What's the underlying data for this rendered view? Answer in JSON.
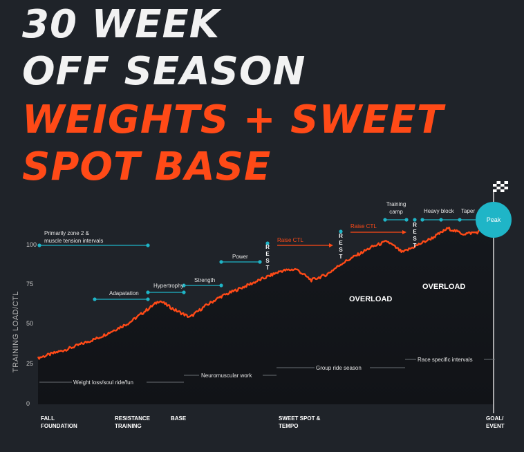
{
  "title": {
    "line1": "30 WEEK",
    "line2": "OFF SEASON",
    "line3": "WEIGHTS  + SWEET",
    "line4": "SPOT BASE"
  },
  "colors": {
    "background": "#1f2329",
    "accent": "#ff4a17",
    "teal": "#1fb5c7",
    "grey_line": "#6b6f75"
  },
  "chart_data": {
    "type": "area",
    "ylabel": "TRAINING LOAD/CTL",
    "yticks": [
      0,
      25,
      50,
      75,
      100
    ],
    "ylim": [
      0,
      100
    ],
    "x_range": [
      0,
      30
    ],
    "xlabels": [
      {
        "x": 0,
        "line1": "FALL",
        "line2": "FOUNDATION"
      },
      {
        "x": 8,
        "line1": "RESISTANCE",
        "line2": "TRAINING"
      },
      {
        "x": 11,
        "line1": "BASE",
        "line2": ""
      },
      {
        "x": 19,
        "line1": "SWEET SPOT &",
        "line2": "TEMPO"
      },
      {
        "x": 30,
        "line1": "GOAL/",
        "line2": "EVENT"
      }
    ],
    "series": [
      {
        "x": [
          0,
          2,
          4,
          6,
          7,
          8,
          9,
          10,
          11,
          12,
          14,
          16,
          17,
          18,
          19,
          20,
          22,
          23,
          24,
          25,
          26,
          27,
          28,
          29,
          30
        ],
        "y": [
          25,
          30,
          36,
          44,
          50,
          56,
          51,
          47,
          53,
          58,
          65,
          72,
          73,
          67,
          70,
          76,
          85,
          88,
          82,
          86,
          90,
          95,
          92,
          93,
          100
        ]
      }
    ],
    "annotations": {
      "top_bars": [
        {
          "label": "Primarily zone 2 &",
          "label2": "muscle tension intervals",
          "x_start": 0,
          "x_end": 8
        },
        {
          "label": "Adapatation",
          "label2": "",
          "x_start": 4,
          "x_end": 8
        },
        {
          "label": "Hypertrophy",
          "label2": "",
          "x_start": 8,
          "x_end": 11
        },
        {
          "label": "Strength",
          "label2": "",
          "x_start": 11,
          "x_end": 14
        },
        {
          "label": "Power",
          "label2": "",
          "x_start": 14,
          "x_end": 17
        },
        {
          "label": "Training",
          "label2": "camp",
          "x_start": 26,
          "x_end": 28
        },
        {
          "label": "Heavy block",
          "label2": "",
          "x_start": 28,
          "x_end": 30
        },
        {
          "label": "Taper",
          "label2": "",
          "x_start": 30,
          "x_end": 31
        }
      ],
      "raise_ctl": [
        "Raise CTL",
        "Raise CTL"
      ],
      "rest": [
        "REST",
        "REST",
        "REST"
      ],
      "overload": [
        "OVERLOAD",
        "OVERLOAD"
      ],
      "bottom": [
        "Weight loss/soul ride/fun",
        "Neuromuscular work",
        "Group ride season",
        "Race specific intervals"
      ],
      "peak": "Peak"
    }
  }
}
